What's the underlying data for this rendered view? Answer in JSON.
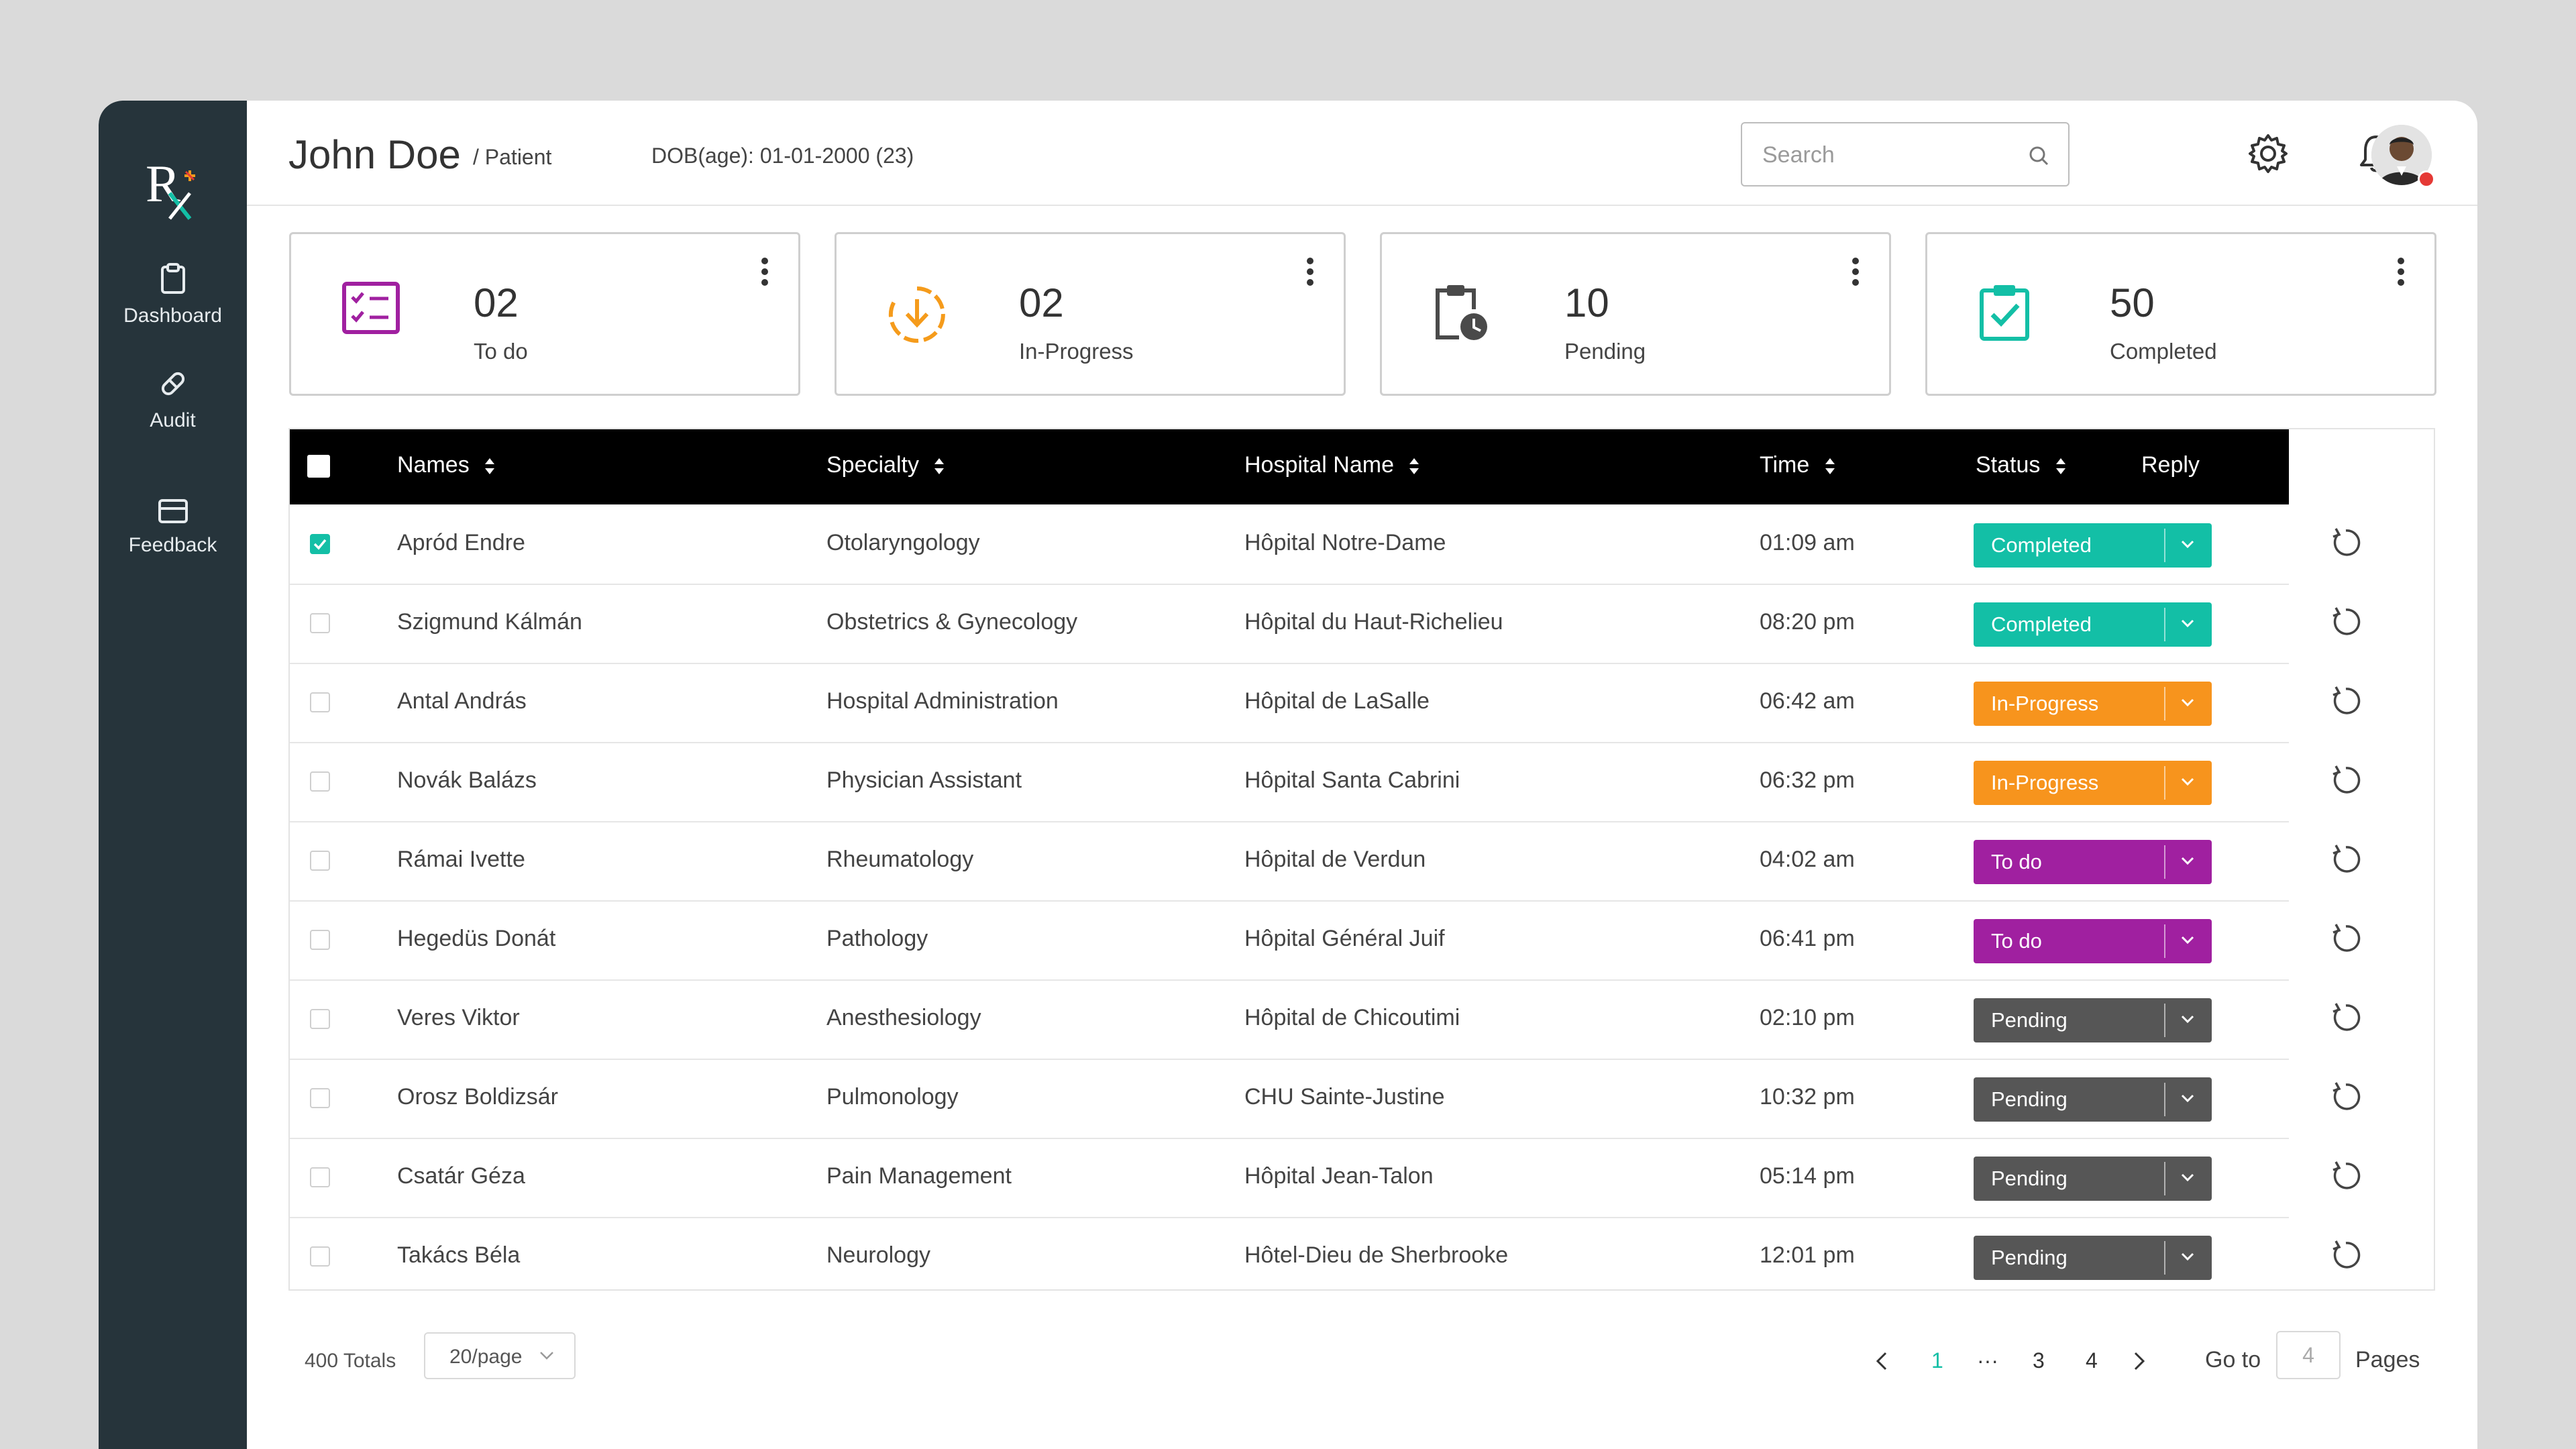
{
  "sidebar": {
    "items": [
      {
        "label": "Dashboard",
        "icon": "clipboard-icon"
      },
      {
        "label": "Audit",
        "icon": "pill-icon"
      },
      {
        "label": "Feedback",
        "icon": "card-icon"
      }
    ]
  },
  "header": {
    "patient_name": "John Doe",
    "patient_role": "/ Patient",
    "dob": "DOB(age): 01-01-2000 (23)",
    "search_placeholder": "Search"
  },
  "stats": [
    {
      "value": "02",
      "label": "To do",
      "color": "#a020a0",
      "icon": "task-list-icon"
    },
    {
      "value": "02",
      "label": "In-Progress",
      "color": "#f59b1b",
      "icon": "download-circle-icon"
    },
    {
      "value": "10",
      "label": "Pending",
      "color": "#4a4a4a",
      "icon": "clipboard-clock-icon"
    },
    {
      "value": "50",
      "label": "Completed",
      "color": "#13bfa6",
      "icon": "clipboard-check-icon"
    }
  ],
  "table": {
    "columns": {
      "names": "Names",
      "specialty": "Specialty",
      "hospital": "Hospital Name",
      "time": "Time",
      "status": "Status",
      "reply": "Reply"
    },
    "rows": [
      {
        "name": "Apród Endre",
        "specialty": "Otolaryngology",
        "hospital": "Hôpital Notre-Dame",
        "time": "01:09 am",
        "status": "Completed",
        "checked": true
      },
      {
        "name": "Szigmund Kálmán",
        "specialty": "Obstetrics & Gynecology",
        "hospital": "Hôpital du Haut-Richelieu",
        "time": "08:20 pm",
        "status": "Completed",
        "checked": false
      },
      {
        "name": "Antal András",
        "specialty": "Hospital Administration",
        "hospital": "Hôpital de LaSalle",
        "time": "06:42 am",
        "status": "In-Progress",
        "checked": false
      },
      {
        "name": "Novák Balázs",
        "specialty": "Physician Assistant",
        "hospital": "Hôpital Santa Cabrini",
        "time": "06:32 pm",
        "status": "In-Progress",
        "checked": false
      },
      {
        "name": "Rámai Ivette",
        "specialty": "Rheumatology",
        "hospital": "Hôpital de Verdun",
        "time": "04:02 am",
        "status": "To do",
        "checked": false
      },
      {
        "name": "Hegedüs Donát",
        "specialty": "Pathology",
        "hospital": "Hôpital Général Juif",
        "time": "06:41 pm",
        "status": "To do",
        "checked": false
      },
      {
        "name": "Veres Viktor",
        "specialty": "Anesthesiology",
        "hospital": "Hôpital de Chicoutimi",
        "time": "02:10 pm",
        "status": "Pending",
        "checked": false
      },
      {
        "name": "Orosz Boldizsár",
        "specialty": "Pulmonology",
        "hospital": "CHU Sainte-Justine",
        "time": "10:32 pm",
        "status": "Pending",
        "checked": false
      },
      {
        "name": "Csatár Géza",
        "specialty": "Pain Management",
        "hospital": "Hôpital Jean-Talon",
        "time": "05:14 pm",
        "status": "Pending",
        "checked": false
      },
      {
        "name": "Takács Béla",
        "specialty": "Neurology",
        "hospital": "Hôtel-Dieu de Sherbrooke",
        "time": "12:01 pm",
        "status": "Pending",
        "checked": false
      }
    ],
    "status_colors": {
      "Completed": "#13bfa6",
      "In-Progress": "#f7941d",
      "To do": "#a020a0",
      "Pending": "#565656"
    }
  },
  "pagination": {
    "totals": "400 Totals",
    "per_page": "20/page",
    "pages": [
      "1",
      "···",
      "3",
      "4"
    ],
    "current": "1",
    "goto_label": "Go to",
    "goto_value": "4",
    "pages_label": "Pages"
  },
  "colors": {
    "accent": "#13bfa6",
    "sidebar": "#26343b"
  }
}
